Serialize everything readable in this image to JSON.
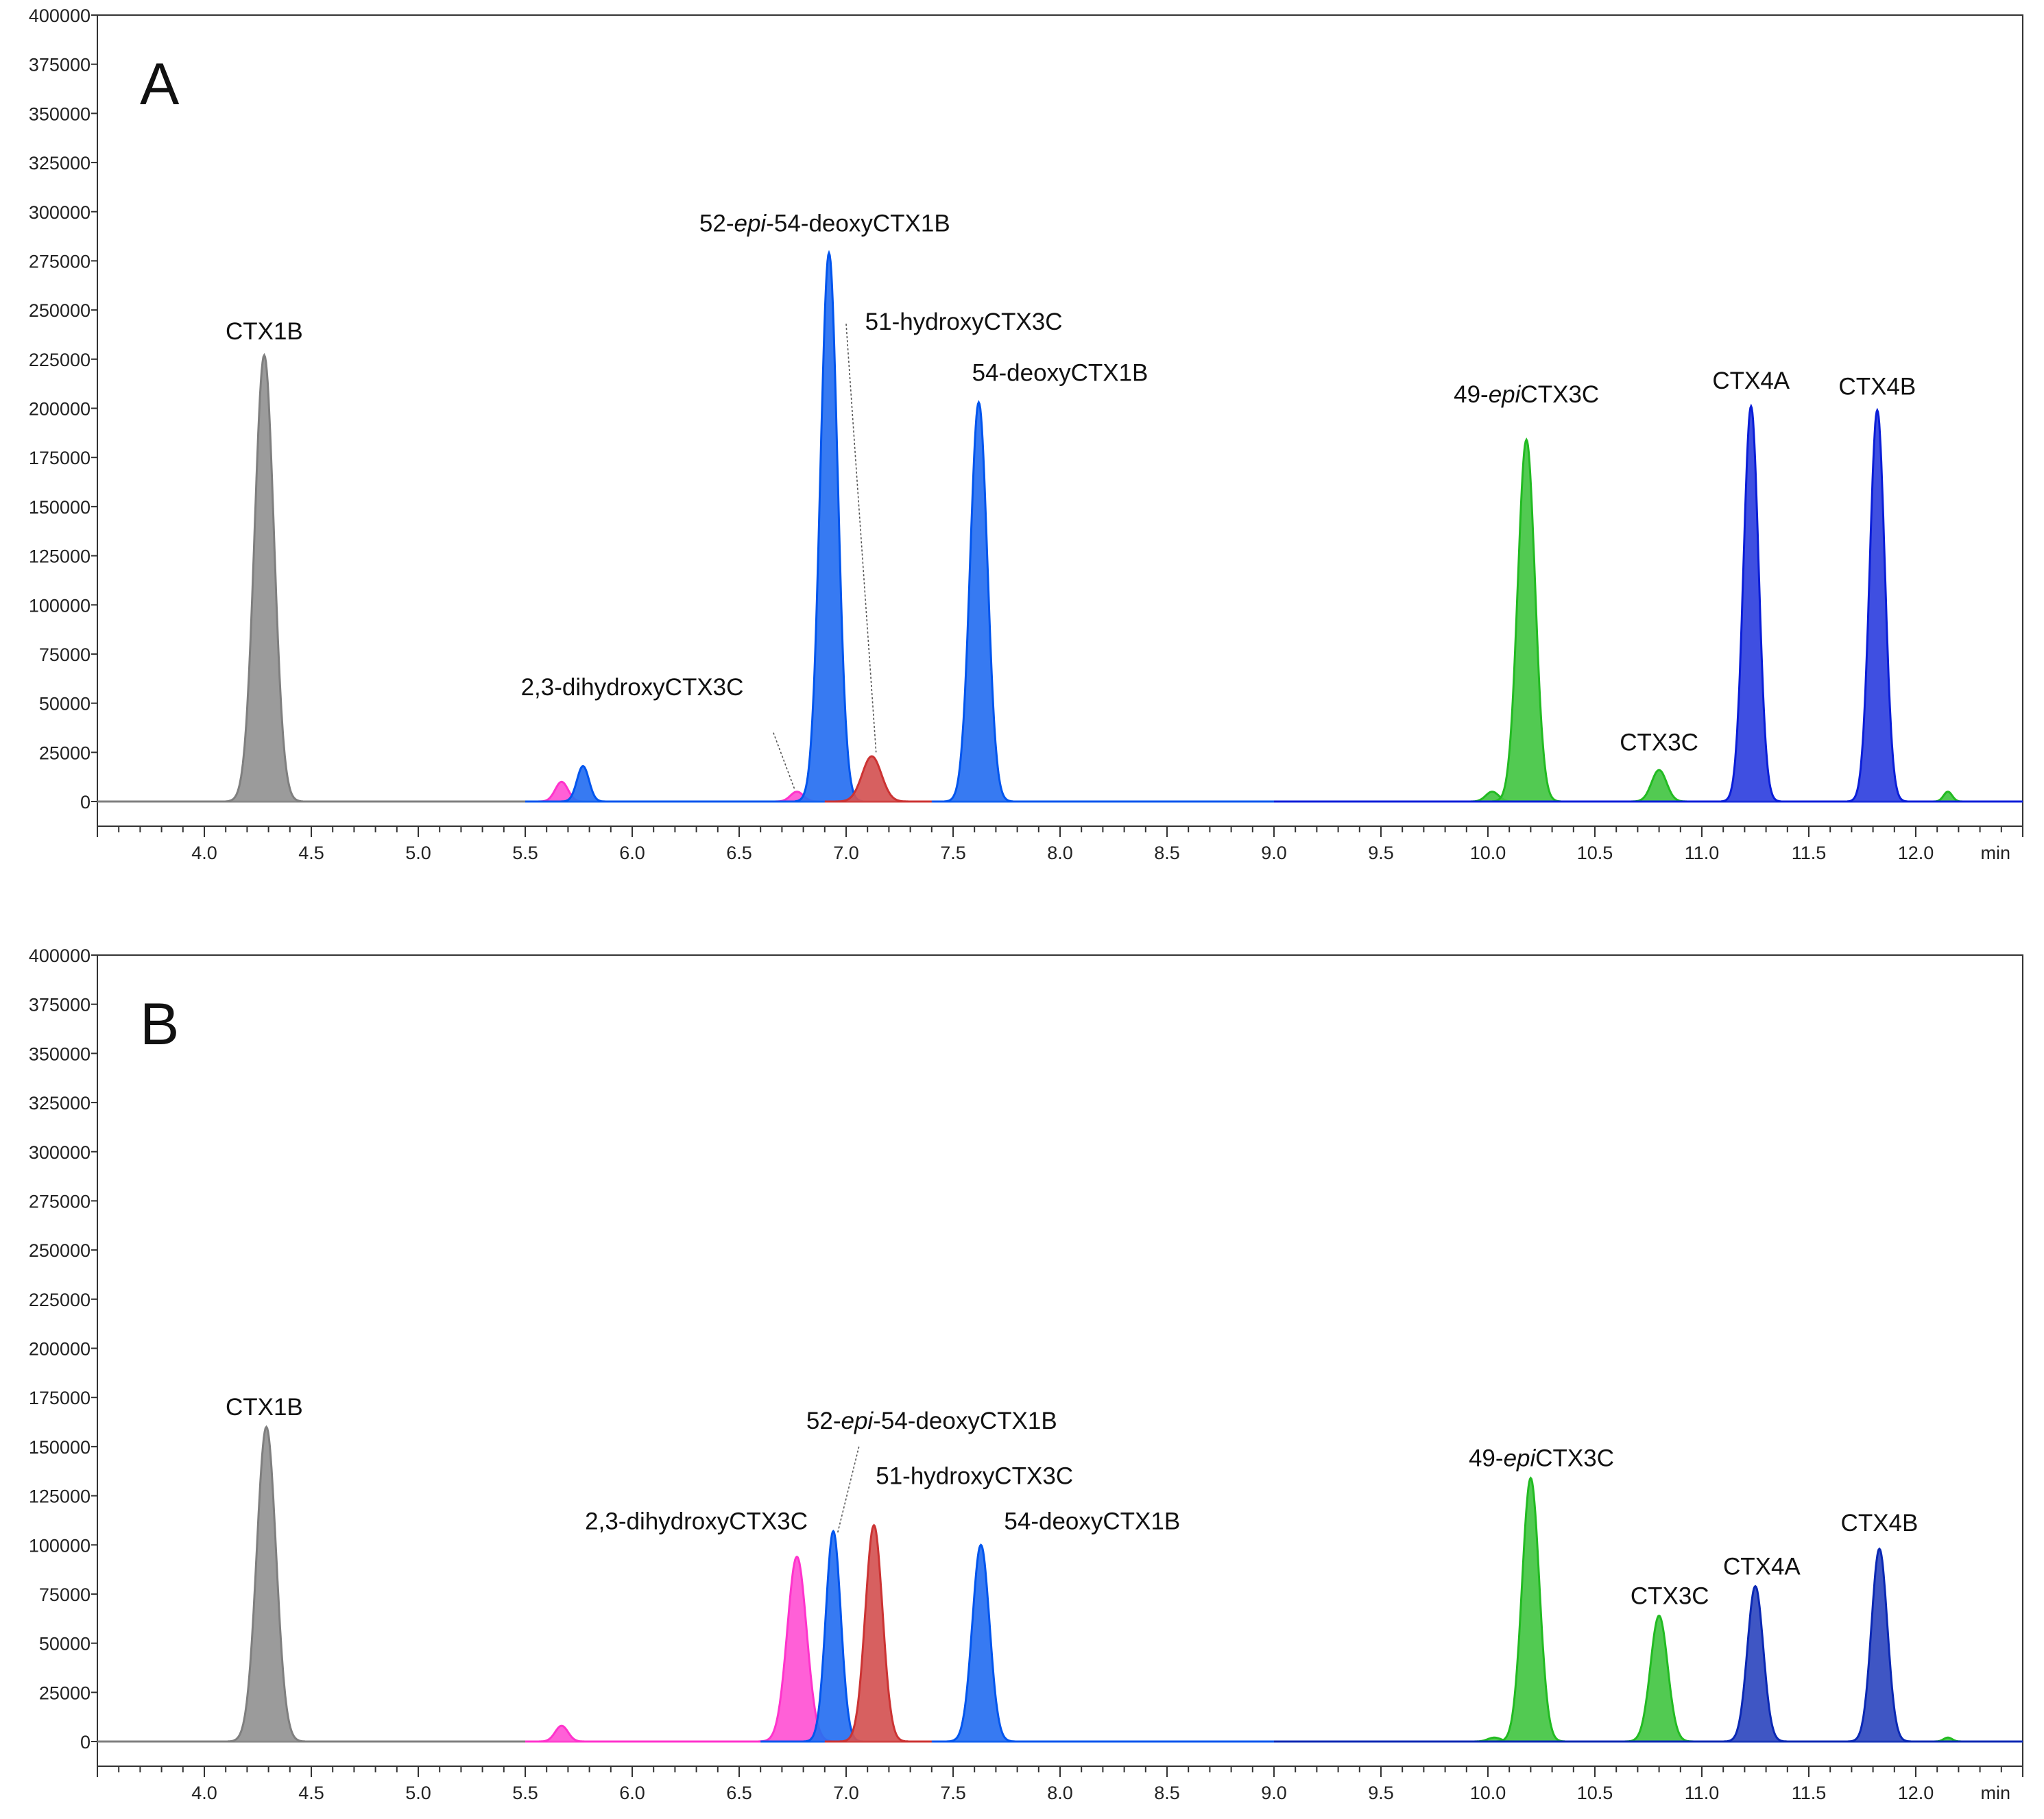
{
  "chart_data": [
    {
      "type": "line",
      "panel_label": "A",
      "xlabel": "min",
      "ylabel": "",
      "xlim": [
        3.5,
        12.5
      ],
      "ylim": [
        0,
        400000
      ],
      "x_ticks": [
        "4.0",
        "4.5",
        "5.0",
        "5.5",
        "6.0",
        "6.5",
        "7.0",
        "7.5",
        "8.0",
        "8.5",
        "9.0",
        "9.5",
        "10.0",
        "10.5",
        "11.0",
        "11.5",
        "12.0"
      ],
      "y_ticks": [
        "0",
        "25000",
        "50000",
        "75000",
        "100000",
        "125000",
        "150000",
        "175000",
        "200000",
        "225000",
        "250000",
        "275000",
        "300000",
        "325000",
        "350000",
        "375000",
        "400000"
      ],
      "series": [
        {
          "name": "gray",
          "color": "#7f7f7f",
          "range": [
            3.5,
            5.5
          ],
          "peaks": [
            {
              "x": 4.28,
              "y": 227000,
              "w": 0.045
            }
          ]
        },
        {
          "name": "magenta",
          "color": "#ff33cc",
          "range": [
            5.5,
            9.0
          ],
          "peaks": [
            {
              "x": 5.67,
              "y": 10000,
              "w": 0.03
            },
            {
              "x": 6.77,
              "y": 5000,
              "w": 0.03
            }
          ]
        },
        {
          "name": "blue",
          "color": "#0055ee",
          "range": [
            5.5,
            9.0
          ],
          "peaks": [
            {
              "x": 5.77,
              "y": 18000,
              "w": 0.028
            },
            {
              "x": 6.92,
              "y": 279000,
              "w": 0.04
            },
            {
              "x": 7.62,
              "y": 203000,
              "w": 0.04
            }
          ]
        },
        {
          "name": "red",
          "color": "#cc3333",
          "range": [
            6.9,
            7.4
          ],
          "peaks": [
            {
              "x": 7.12,
              "y": 23000,
              "w": 0.045
            }
          ]
        },
        {
          "name": "green",
          "color": "#22bb22",
          "range": [
            9.0,
            12.5
          ],
          "peaks": [
            {
              "x": 10.02,
              "y": 5000,
              "w": 0.03
            },
            {
              "x": 10.18,
              "y": 184000,
              "w": 0.04
            },
            {
              "x": 10.8,
              "y": 16000,
              "w": 0.035
            },
            {
              "x": 12.15,
              "y": 5000,
              "w": 0.02
            }
          ]
        },
        {
          "name": "navy",
          "color": "#0a1ed8",
          "range": [
            9.0,
            12.5
          ],
          "peaks": [
            {
              "x": 11.23,
              "y": 201000,
              "w": 0.035
            },
            {
              "x": 11.82,
              "y": 199000,
              "w": 0.035
            }
          ]
        }
      ],
      "annotations": [
        {
          "label": "CTX1B",
          "x": 4.28,
          "y": 235000,
          "anchor": "middle"
        },
        {
          "label_parts": [
            "52-",
            "epi",
            "-54-deoxyCTX1B"
          ],
          "x": 6.9,
          "y": 290000,
          "anchor": "middle"
        },
        {
          "label": "51-hydroxyCTX3C",
          "x": 7.55,
          "y": 240000,
          "anchor": "middle",
          "leader": [
            7.0,
            243000,
            7.14,
            25000
          ]
        },
        {
          "label": "54-deoxyCTX1B",
          "x": 8.0,
          "y": 214000,
          "anchor": "middle"
        },
        {
          "label": "2,3-dihydroxyCTX3C",
          "x": 6.0,
          "y": 54000,
          "anchor": "middle",
          "leader": [
            6.66,
            35000,
            6.76,
            6000
          ]
        },
        {
          "label_parts": [
            "49-",
            "epi",
            "CTX3C"
          ],
          "x": 10.18,
          "y": 203000,
          "anchor": "middle"
        },
        {
          "label": "CTX3C",
          "x": 10.8,
          "y": 26000,
          "anchor": "middle"
        },
        {
          "label": "CTX4A",
          "x": 11.23,
          "y": 210000,
          "anchor": "middle"
        },
        {
          "label": "CTX4B",
          "x": 11.82,
          "y": 207000,
          "anchor": "middle"
        }
      ]
    },
    {
      "type": "line",
      "panel_label": "B",
      "xlabel": "min",
      "ylabel": "",
      "xlim": [
        3.5,
        12.5
      ],
      "ylim": [
        0,
        400000
      ],
      "x_ticks": [
        "4.0",
        "4.5",
        "5.0",
        "5.5",
        "6.0",
        "6.5",
        "7.0",
        "7.5",
        "8.0",
        "8.5",
        "9.0",
        "9.5",
        "10.0",
        "10.5",
        "11.0",
        "11.5",
        "12.0"
      ],
      "y_ticks": [
        "0",
        "25000",
        "50000",
        "75000",
        "100000",
        "125000",
        "150000",
        "175000",
        "200000",
        "225000",
        "250000",
        "275000",
        "300000",
        "325000",
        "350000",
        "375000",
        "400000"
      ],
      "series": [
        {
          "name": "gray",
          "color": "#7f7f7f",
          "range": [
            3.5,
            5.5
          ],
          "peaks": [
            {
              "x": 4.29,
              "y": 160000,
              "w": 0.045
            }
          ]
        },
        {
          "name": "magenta",
          "color": "#ff33cc",
          "range": [
            5.5,
            9.0
          ],
          "peaks": [
            {
              "x": 5.67,
              "y": 8000,
              "w": 0.03
            },
            {
              "x": 6.77,
              "y": 94000,
              "w": 0.045
            }
          ]
        },
        {
          "name": "blue",
          "color": "#0055ee",
          "range": [
            6.6,
            9.0
          ],
          "peaks": [
            {
              "x": 6.94,
              "y": 107000,
              "w": 0.035
            },
            {
              "x": 7.63,
              "y": 100000,
              "w": 0.04
            }
          ]
        },
        {
          "name": "red",
          "color": "#cc3333",
          "range": [
            6.9,
            7.4
          ],
          "peaks": [
            {
              "x": 7.13,
              "y": 110000,
              "w": 0.04
            }
          ]
        },
        {
          "name": "green",
          "color": "#22bb22",
          "range": [
            9.0,
            12.5
          ],
          "peaks": [
            {
              "x": 10.03,
              "y": 2000,
              "w": 0.03
            },
            {
              "x": 10.2,
              "y": 134000,
              "w": 0.04
            },
            {
              "x": 10.8,
              "y": 64000,
              "w": 0.04
            },
            {
              "x": 12.15,
              "y": 2000,
              "w": 0.02
            }
          ]
        },
        {
          "name": "navy",
          "color": "#0a28b4",
          "range": [
            9.0,
            12.5
          ],
          "peaks": [
            {
              "x": 11.25,
              "y": 79000,
              "w": 0.037
            },
            {
              "x": 11.83,
              "y": 98000,
              "w": 0.037
            }
          ]
        }
      ],
      "annotations": [
        {
          "label": "CTX1B",
          "x": 4.28,
          "y": 166000,
          "anchor": "middle"
        },
        {
          "label_parts": [
            "52-",
            "epi",
            "-54-deoxyCTX1B"
          ],
          "x": 7.4,
          "y": 159000,
          "anchor": "middle",
          "leader": [
            7.06,
            150000,
            6.96,
            106000
          ]
        },
        {
          "label": "51-hydroxyCTX3C",
          "x": 7.6,
          "y": 131000,
          "anchor": "middle"
        },
        {
          "label": "54-deoxyCTX1B",
          "x": 8.15,
          "y": 108000,
          "anchor": "middle"
        },
        {
          "label": "2,3-dihydroxyCTX3C",
          "x": 6.3,
          "y": 108000,
          "anchor": "middle"
        },
        {
          "label_parts": [
            "49-",
            "epi",
            "CTX3C"
          ],
          "x": 10.25,
          "y": 140000,
          "anchor": "middle"
        },
        {
          "label": "CTX3C",
          "x": 10.85,
          "y": 70000,
          "anchor": "middle"
        },
        {
          "label": "CTX4A",
          "x": 11.28,
          "y": 85000,
          "anchor": "middle"
        },
        {
          "label": "CTX4B",
          "x": 11.83,
          "y": 107000,
          "anchor": "middle"
        }
      ]
    }
  ]
}
